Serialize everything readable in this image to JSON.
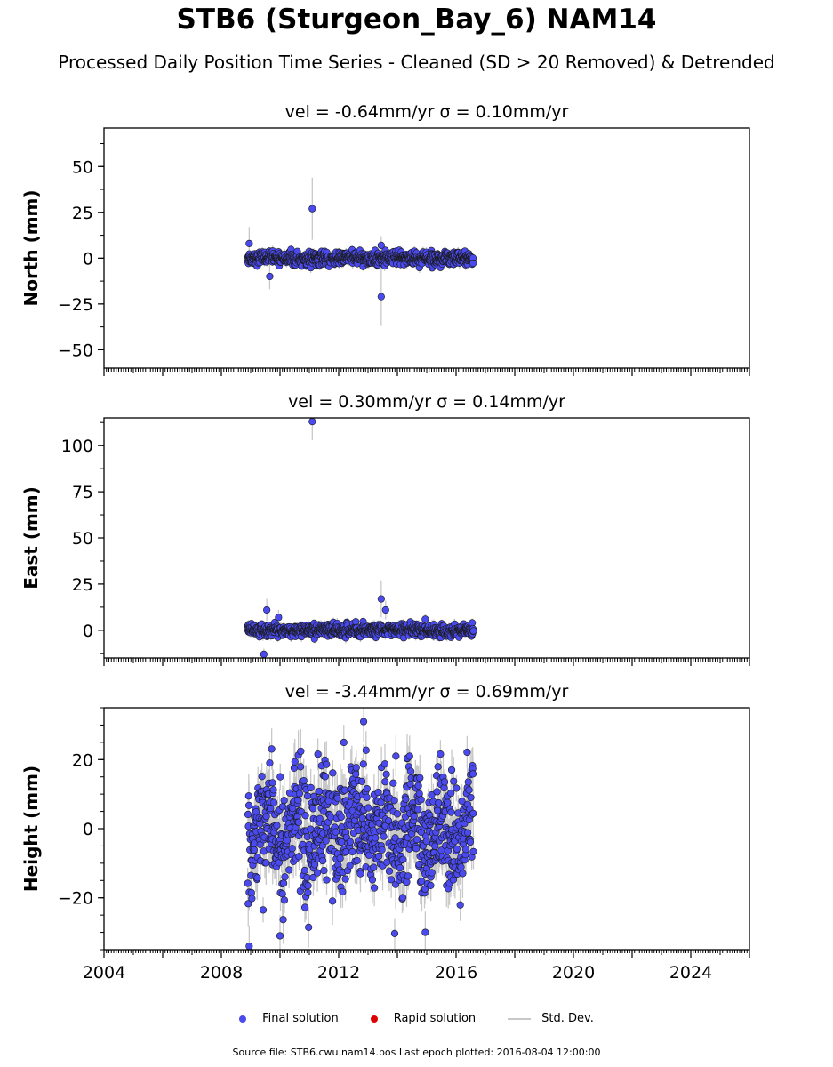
{
  "title": "STB6 (Sturgeon_Bay_6) NAM14",
  "subtitle": "Processed Daily Position Time Series - Cleaned (SD > 20 Removed) & Detrended",
  "colors": {
    "final": "#4a4aee",
    "final_edge": "#1a1a1a",
    "rapid": "#dd0000",
    "stddev": "#c8c8c8"
  },
  "legend": {
    "final": "Final solution",
    "rapid": "Rapid solution",
    "stddev": "Std. Dev."
  },
  "footer": "Source file: STB6.cwu.nam14.pos  Last epoch plotted: 2016-08-04 12:00:00",
  "chart_data": [
    {
      "type": "scatter",
      "panel_title": "vel = -0.64mm/yr   σ = 0.10mm/yr",
      "ylabel": "North (mm)",
      "xlim": [
        2004,
        2026
      ],
      "ylim": [
        -60,
        71
      ],
      "yticks": [
        -50,
        -25,
        0,
        25,
        50
      ],
      "ytick_labels": [
        "−50",
        "−25",
        "0",
        "25",
        "50"
      ],
      "x_range_data": [
        2008.9,
        2016.6
      ],
      "scatter_sd": 1.8,
      "error_sd": 2.5,
      "grid": false,
      "outliers": [
        {
          "x": 2011.1,
          "y": 27,
          "err": 17
        },
        {
          "x": 2013.45,
          "y": -21,
          "err": 16
        },
        {
          "x": 2009.65,
          "y": -10,
          "err": 7
        },
        {
          "x": 2013.45,
          "y": 7,
          "err": 5
        },
        {
          "x": 2008.95,
          "y": 8,
          "err": 9
        }
      ]
    },
    {
      "type": "scatter",
      "panel_title": "vel = 0.30mm/yr   σ = 0.14mm/yr",
      "ylabel": "East (mm)",
      "xlim": [
        2004,
        2026
      ],
      "ylim": [
        -15,
        115
      ],
      "yticks": [
        0,
        25,
        50,
        75,
        100
      ],
      "ytick_labels": [
        "0",
        "25",
        "50",
        "75",
        "100"
      ],
      "x_range_data": [
        2008.9,
        2016.6
      ],
      "scatter_sd": 1.6,
      "error_sd": 2.5,
      "grid": false,
      "outliers": [
        {
          "x": 2011.1,
          "y": 113,
          "err": 10
        },
        {
          "x": 2013.45,
          "y": 17,
          "err": 10
        },
        {
          "x": 2013.6,
          "y": 11,
          "err": 5
        },
        {
          "x": 2009.55,
          "y": 11,
          "err": 6
        },
        {
          "x": 2009.45,
          "y": -13,
          "err": 3
        },
        {
          "x": 2009.95,
          "y": 7,
          "err": 4
        },
        {
          "x": 2014.95,
          "y": 6,
          "err": 3
        }
      ]
    },
    {
      "type": "scatter",
      "panel_title": "vel = -3.44mm/yr   σ = 0.69mm/yr",
      "ylabel": "Height (mm)",
      "xlim": [
        2004,
        2026
      ],
      "ylim": [
        -35,
        35
      ],
      "yticks": [
        -20,
        0,
        20
      ],
      "ytick_labels": [
        "−20",
        "0",
        "20"
      ],
      "xticks": [
        2004,
        2008,
        2012,
        2016,
        2020,
        2024
      ],
      "xtick_labels": [
        "2004",
        "2008",
        "2012",
        "2016",
        "2020",
        "2024"
      ],
      "x_range_data": [
        2008.9,
        2016.6
      ],
      "scatter_sd": 8,
      "error_sd": 6,
      "seasonal_amplitude": 5,
      "grid": false,
      "outliers": [
        {
          "x": 2012.85,
          "y": 31,
          "err": 6
        },
        {
          "x": 2009.65,
          "y": 19,
          "err": 6
        },
        {
          "x": 2013.95,
          "y": 21,
          "err": 6
        },
        {
          "x": 2015.85,
          "y": 17,
          "err": 6
        },
        {
          "x": 2008.95,
          "y": -34,
          "err": 6
        },
        {
          "x": 2014.95,
          "y": -30,
          "err": 6
        },
        {
          "x": 2010.0,
          "y": -31,
          "err": 6
        }
      ]
    }
  ]
}
